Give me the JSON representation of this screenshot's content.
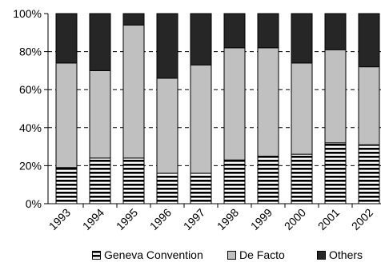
{
  "chart_data": {
    "type": "bar",
    "stacked": true,
    "percent": true,
    "categories": [
      "1993",
      "1994",
      "1995",
      "1996",
      "1997",
      "1998",
      "1999",
      "2000",
      "2001",
      "2002"
    ],
    "series": [
      {
        "name": "Geneva Convention",
        "values": [
          19,
          24,
          24,
          16,
          16,
          23,
          25,
          26,
          32,
          31
        ],
        "fill": "hstripe"
      },
      {
        "name": "De Facto",
        "values": [
          55,
          46,
          70,
          50,
          57,
          59,
          57,
          48,
          49,
          41
        ],
        "color": "#c0c0c0"
      },
      {
        "name": "Others",
        "values": [
          26,
          30,
          6,
          34,
          27,
          18,
          18,
          26,
          19,
          28
        ],
        "color": "#262626"
      }
    ],
    "y_ticks": [
      "0%",
      "20%",
      "40%",
      "60%",
      "80%",
      "100%"
    ],
    "ylim": [
      0,
      100
    ],
    "grid": "dashed",
    "legend_position": "bottom"
  },
  "legend": {
    "item_0": "Geneva Convention",
    "item_1": "De Facto",
    "item_2": "Others"
  }
}
